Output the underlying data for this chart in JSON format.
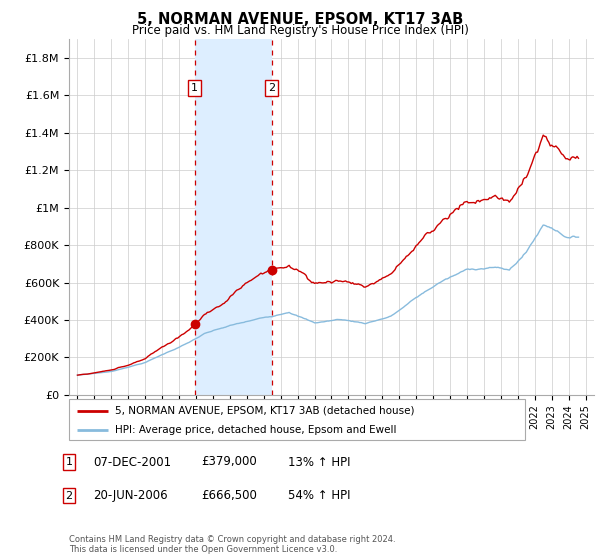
{
  "title": "5, NORMAN AVENUE, EPSOM, KT17 3AB",
  "subtitle": "Price paid vs. HM Land Registry's House Price Index (HPI)",
  "ylim": [
    0,
    1900000
  ],
  "yticks": [
    0,
    200000,
    400000,
    600000,
    800000,
    1000000,
    1200000,
    1400000,
    1600000,
    1800000
  ],
  "ytick_labels": [
    "£0",
    "£200K",
    "£400K",
    "£600K",
    "£800K",
    "£1M",
    "£1.2M",
    "£1.4M",
    "£1.6M",
    "£1.8M"
  ],
  "year_start": 1995,
  "year_end": 2025,
  "sale1_year": 2001.92,
  "sale1_price": 379000,
  "sale2_year": 2006.47,
  "sale2_price": 666500,
  "line1_color": "#cc0000",
  "line2_color": "#88bbdd",
  "shade_color": "#ddeeff",
  "vline_color": "#cc0000",
  "grid_color": "#cccccc",
  "legend1_label": "5, NORMAN AVENUE, EPSOM, KT17 3AB (detached house)",
  "legend2_label": "HPI: Average price, detached house, Epsom and Ewell",
  "footer": "Contains HM Land Registry data © Crown copyright and database right 2024.\nThis data is licensed under the Open Government Licence v3.0.",
  "table_rows": [
    [
      "1",
      "07-DEC-2001",
      "£379,000",
      "13% ↑ HPI"
    ],
    [
      "2",
      "20-JUN-2006",
      "£666,500",
      "54% ↑ HPI"
    ]
  ]
}
